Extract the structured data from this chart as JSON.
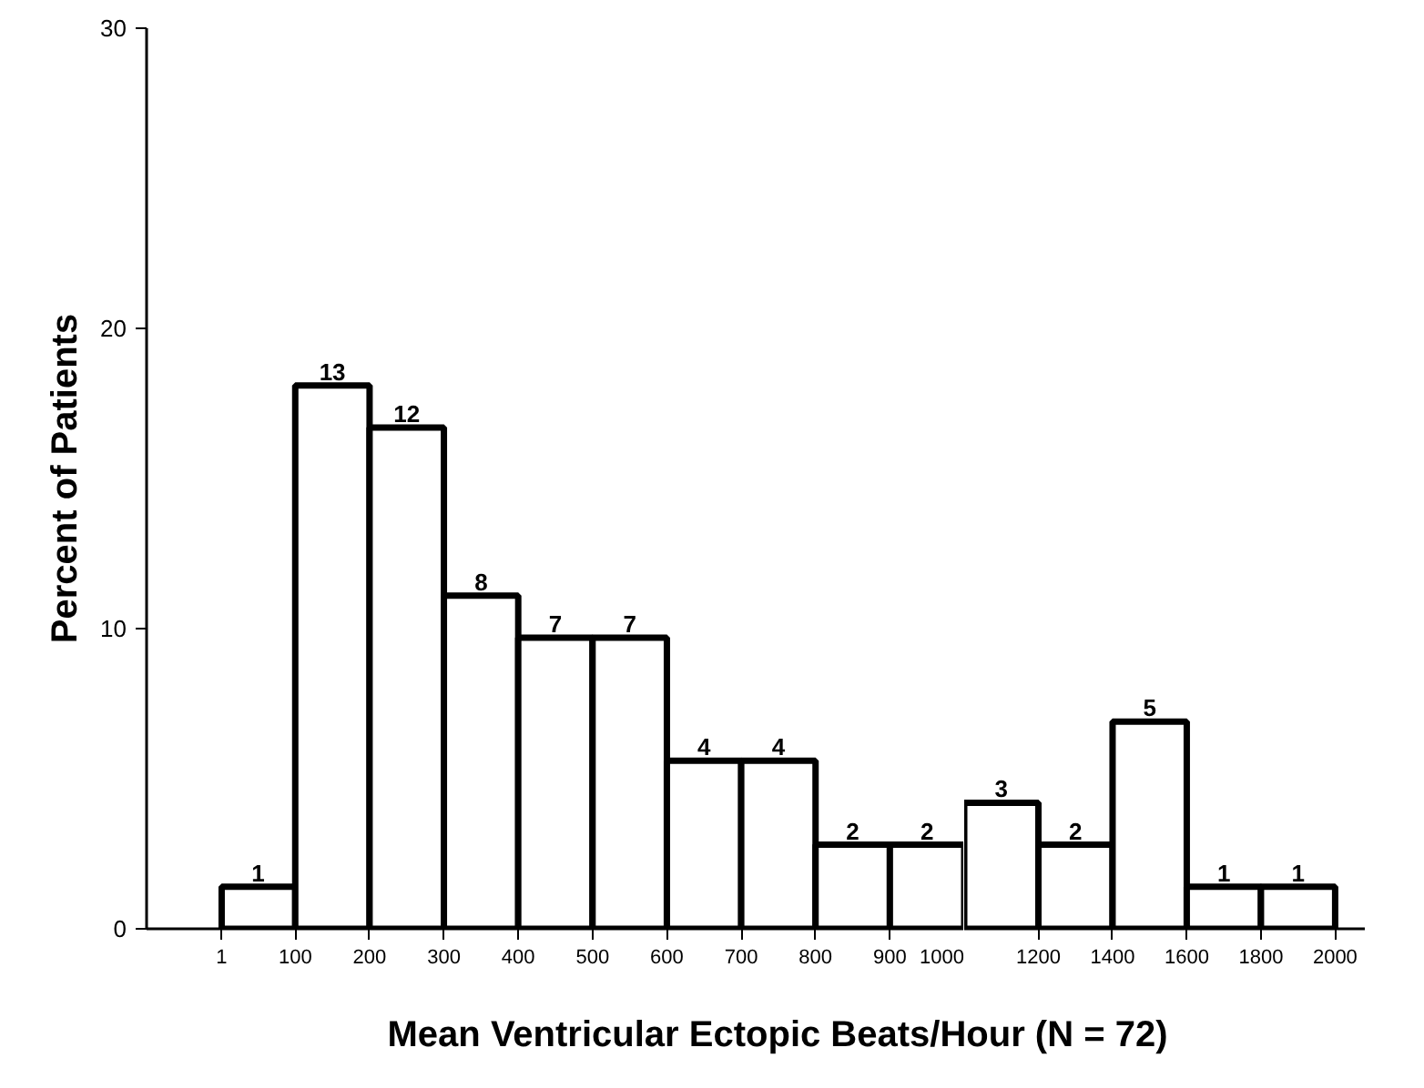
{
  "chart_data": [
    {
      "type": "histogram",
      "bins": [
        1,
        100,
        200,
        300,
        400,
        500,
        600,
        700,
        800,
        900,
        1000
      ],
      "values": [
        1.4,
        18.1,
        16.7,
        11.1,
        9.7,
        9.7,
        5.6,
        5.6,
        2.8,
        2.8
      ],
      "color": "#ffffff",
      "annotations": [
        {
          "text": "1",
          "x": 50,
          "y": 1.4
        },
        {
          "text": "13",
          "x": 150,
          "y": 18.1
        },
        {
          "text": "12",
          "x": 250,
          "y": 16.7
        },
        {
          "text": "8",
          "x": 350,
          "y": 11.1
        },
        {
          "text": "7",
          "x": 450,
          "y": 9.7
        },
        {
          "text": "7",
          "x": 550,
          "y": 9.7
        },
        {
          "text": "4",
          "x": 650,
          "y": 5.6
        },
        {
          "text": "4",
          "x": 750,
          "y": 5.6
        },
        {
          "text": "2",
          "x": 850,
          "y": 2.8
        },
        {
          "text": "2",
          "x": 950,
          "y": 2.8
        }
      ],
      "xlabel": "Mean Ventricular Ectopic Beats/Hour (N = 72)",
      "ylabel": "Percent of Patients",
      "xlim": [
        -100,
        1000
      ],
      "xticks": [
        1,
        100,
        200,
        300,
        400,
        500,
        600,
        700,
        800,
        900,
        1000
      ],
      "ylim": [
        0,
        30
      ],
      "yticks": [
        0,
        10,
        20,
        30
      ]
    },
    {
      "type": "histogram",
      "bins": [
        1000,
        1200,
        1400,
        1600,
        1800,
        2000
      ],
      "values": [
        4.2,
        2.8,
        6.9,
        1.4,
        1.4
      ],
      "color": "#ffffff",
      "annotations": [
        {
          "text": "3",
          "x": 1100,
          "y": 4.2
        },
        {
          "text": "2",
          "x": 1300,
          "y": 2.8
        },
        {
          "text": "5",
          "x": 1500,
          "y": 6.9
        },
        {
          "text": "1",
          "x": 1700,
          "y": 1.4
        },
        {
          "text": "1",
          "x": 1900,
          "y": 1.4
        }
      ],
      "xlim": [
        1000,
        2080
      ],
      "xticks": [
        1200,
        1400,
        1600,
        1800,
        2000
      ],
      "ylim": [
        0,
        30
      ],
      "yticks": [
        0,
        10,
        20,
        30
      ],
      "tick_labels": "x"
    }
  ]
}
